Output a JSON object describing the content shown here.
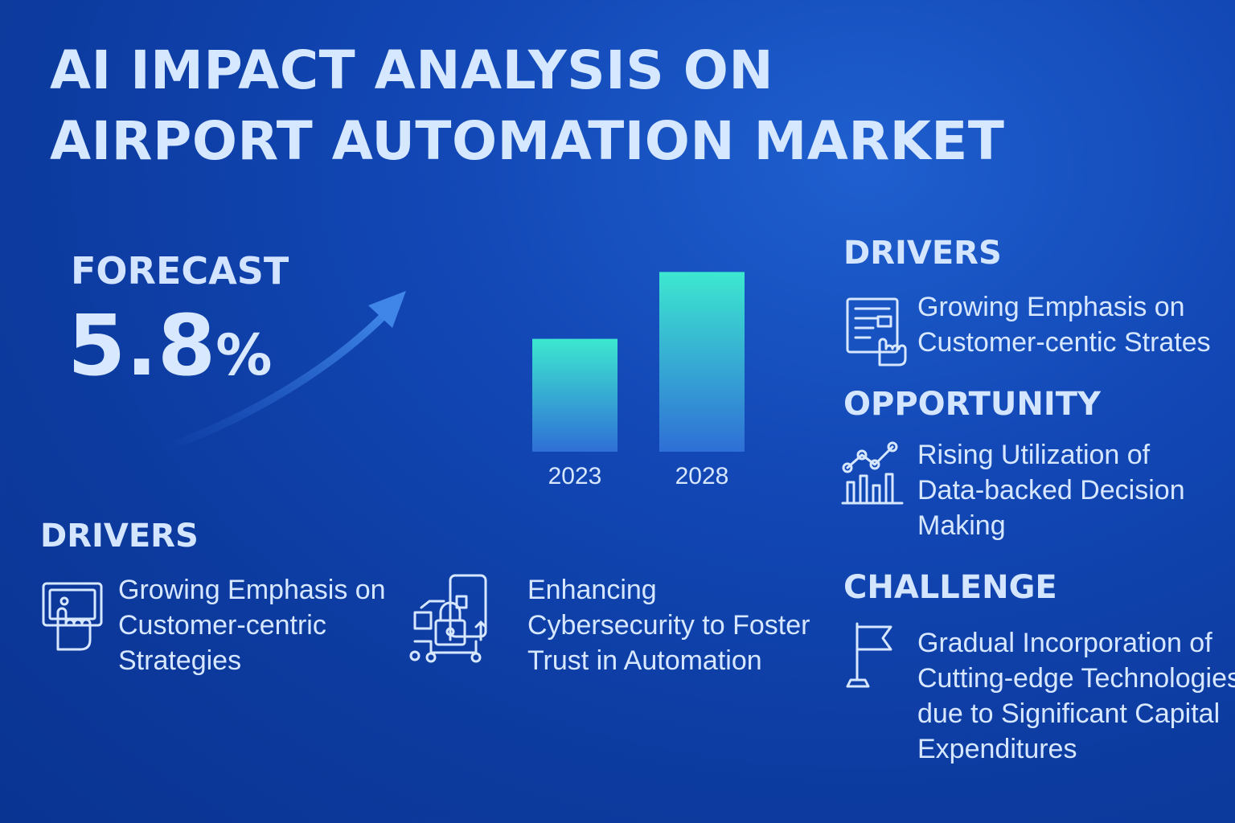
{
  "title_lines": [
    "AI IMPACT ANALYSIS ON",
    "AIRPORT AUTOMATION MARKET"
  ],
  "forecast": {
    "label": "FORECAST",
    "value": "5.8",
    "unit": "%"
  },
  "chart_data": {
    "type": "bar",
    "categories": [
      "2023",
      "2028"
    ],
    "values": [
      54,
      86
    ],
    "ylim": [
      0,
      100
    ],
    "colors": {
      "top": "#3de8d0",
      "bottom": "#2f6fd6"
    }
  },
  "right": {
    "drivers": {
      "heading": "DRIVERS",
      "icon": "touch-document-icon",
      "lines": [
        "Growing Emphasis on",
        "Customer-centic Strates"
      ]
    },
    "opportunity": {
      "heading": "OPPORTUNITY",
      "icon": "analytics-chart-icon",
      "lines": [
        "Rising Utilization of",
        "Data-backed Decision",
        "Making"
      ]
    },
    "challenge": {
      "heading": "CHALLENGE",
      "icon": "flag-icon",
      "lines": [
        "Gradual Incorporation of",
        "Cutting-edge Technologies",
        "due to Significant Capital",
        "Expenditures"
      ]
    }
  },
  "bottom": {
    "heading": "DRIVERS",
    "items": [
      {
        "icon": "touchscreen-icon",
        "lines": [
          "Growing Emphasis on",
          "Customer-centric",
          "Strategies"
        ]
      },
      {
        "icon": "cybersecurity-lock-icon",
        "lines": [
          "Enhancing",
          "Cybersecurity to Foster",
          "Trust in Automation"
        ]
      }
    ]
  }
}
